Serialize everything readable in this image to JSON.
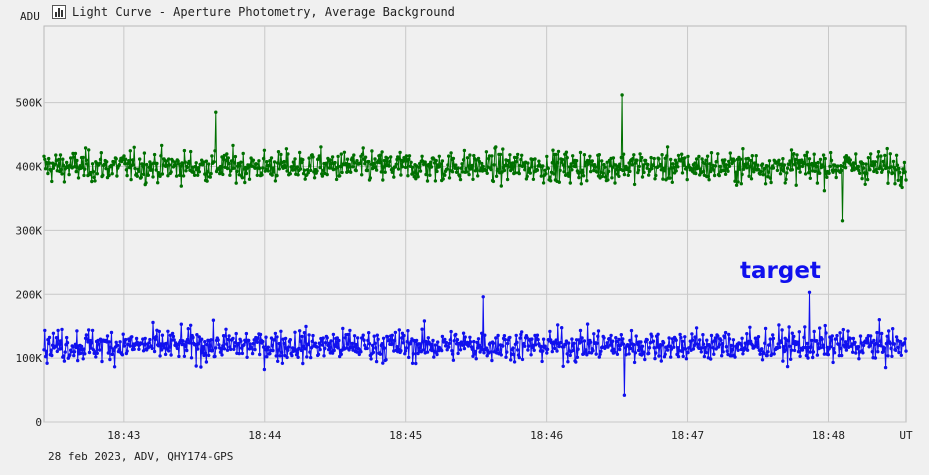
{
  "window": {
    "title": "Light Curve - Aperture Photometry, Average Background",
    "footer": "28 feb 2023, ADV, QHY174-GPS"
  },
  "chart_data": {
    "type": "line",
    "title": "Light Curve - Aperture Photometry, Average Background",
    "ylabel": "ADU",
    "xlabel": "UT",
    "x_ticks": [
      "18:43",
      "18:44",
      "18:45",
      "18:46",
      "18:47",
      "18:48"
    ],
    "y_ticks": [
      "0",
      "100K",
      "200K",
      "300K",
      "400K",
      "500K"
    ],
    "ylim": [
      0,
      620000
    ],
    "xlim": [
      "18:42:26",
      "18:48:33"
    ],
    "grid": true,
    "series": [
      {
        "color": "#007000",
        "mean": 400000,
        "approx_range": [
          315000,
          512000
        ],
        "notable_points": [
          {
            "x": "18:46:32",
            "y": 512000
          },
          {
            "x": "18:43:39",
            "y": 485000
          },
          {
            "x": "18:48:06",
            "y": 315000
          }
        ]
      },
      {
        "name": "target",
        "color": "#1010ee",
        "mean": 120000,
        "approx_range": [
          42000,
          203000
        ],
        "notable_points": [
          {
            "x": "18:47:52",
            "y": 203000
          },
          {
            "x": "18:45:33",
            "y": 196000
          },
          {
            "x": "18:46:33",
            "y": 42000
          }
        ]
      }
    ],
    "annotations": [
      {
        "text": "target",
        "color": "#1010ee",
        "near_series": "target"
      }
    ]
  }
}
